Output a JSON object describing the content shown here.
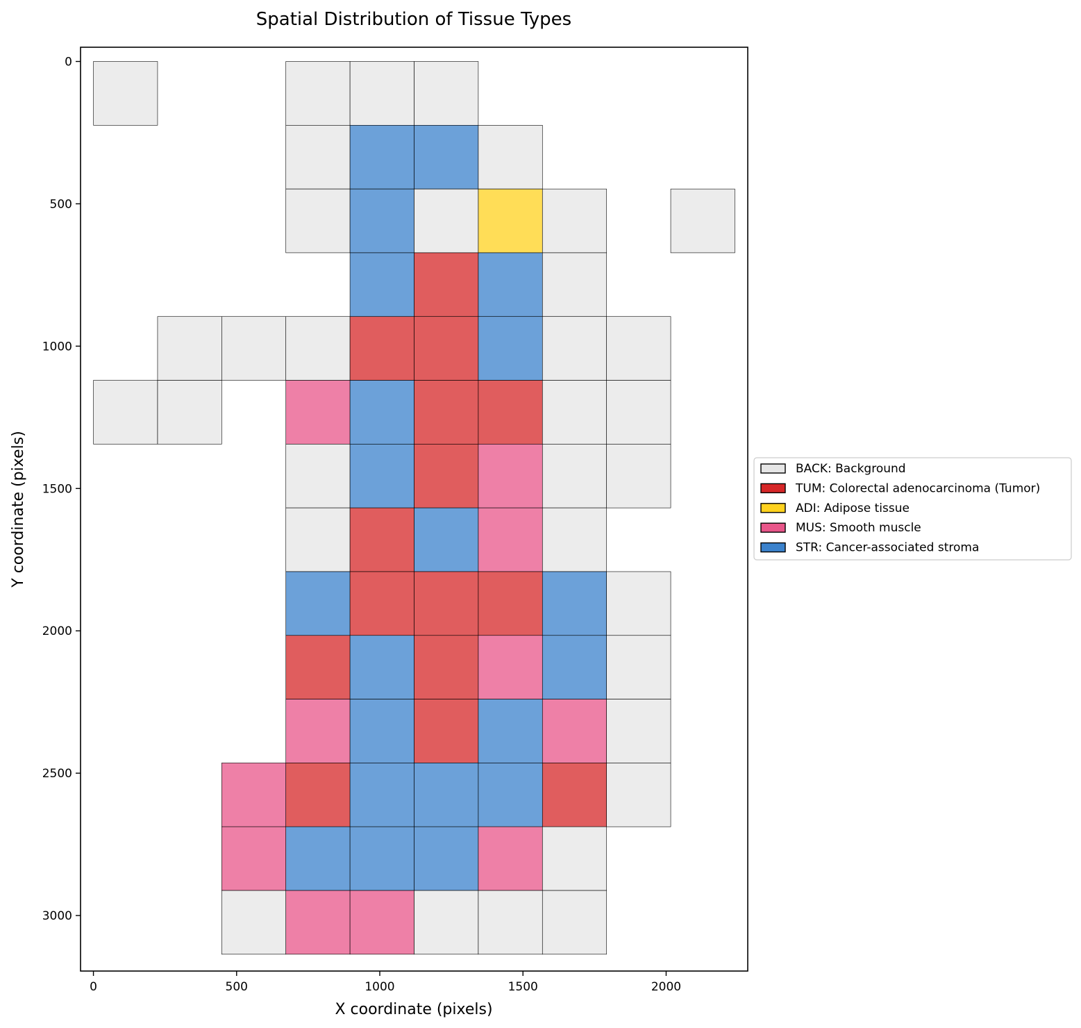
{
  "chart_data": {
    "type": "heatmap",
    "title": "Spatial Distribution of Tissue Types",
    "xlabel": "X coordinate (pixels)",
    "ylabel": "Y coordinate (pixels)",
    "xlim": [
      -45,
      2285
    ],
    "ylim": [
      3195,
      -50
    ],
    "y_inverted": true,
    "tile_size": 224,
    "xticks": [
      0,
      500,
      1000,
      1500,
      2000
    ],
    "yticks": [
      0,
      500,
      1000,
      1500,
      2000,
      2500,
      3000
    ],
    "grid": false,
    "legend_position": "center-right-outside",
    "categories": [
      {
        "code": "BACK",
        "label": "BACK: Background",
        "color": "#e6e6e6"
      },
      {
        "code": "TUM",
        "label": "TUM: Colorectal adenocarcinoma (Tumor)",
        "color": "#d62728"
      },
      {
        "code": "ADI",
        "label": "ADI: Adipose tissue",
        "color": "#ffd21f"
      },
      {
        "code": "MUS",
        "label": "MUS: Smooth muscle",
        "color": "#e8568a"
      },
      {
        "code": "STR",
        "label": "STR: Cancer-associated stroma",
        "color": "#3b82cc"
      }
    ],
    "tile_opacity": 0.75,
    "tiles": [
      {
        "x": 0,
        "y": 0,
        "type": "BACK"
      },
      {
        "x": 672,
        "y": 0,
        "type": "BACK"
      },
      {
        "x": 896,
        "y": 0,
        "type": "BACK"
      },
      {
        "x": 1120,
        "y": 0,
        "type": "BACK"
      },
      {
        "x": 672,
        "y": 224,
        "type": "BACK"
      },
      {
        "x": 896,
        "y": 224,
        "type": "STR"
      },
      {
        "x": 1120,
        "y": 224,
        "type": "STR"
      },
      {
        "x": 1344,
        "y": 224,
        "type": "BACK"
      },
      {
        "x": 672,
        "y": 448,
        "type": "BACK"
      },
      {
        "x": 896,
        "y": 448,
        "type": "STR"
      },
      {
        "x": 1120,
        "y": 448,
        "type": "BACK"
      },
      {
        "x": 1344,
        "y": 448,
        "type": "ADI"
      },
      {
        "x": 1568,
        "y": 448,
        "type": "BACK"
      },
      {
        "x": 2016,
        "y": 448,
        "type": "BACK"
      },
      {
        "x": 896,
        "y": 672,
        "type": "STR"
      },
      {
        "x": 1120,
        "y": 672,
        "type": "TUM"
      },
      {
        "x": 1344,
        "y": 672,
        "type": "STR"
      },
      {
        "x": 1568,
        "y": 672,
        "type": "BACK"
      },
      {
        "x": 224,
        "y": 896,
        "type": "BACK"
      },
      {
        "x": 448,
        "y": 896,
        "type": "BACK"
      },
      {
        "x": 672,
        "y": 896,
        "type": "BACK"
      },
      {
        "x": 896,
        "y": 896,
        "type": "TUM"
      },
      {
        "x": 1120,
        "y": 896,
        "type": "TUM"
      },
      {
        "x": 1344,
        "y": 896,
        "type": "STR"
      },
      {
        "x": 1568,
        "y": 896,
        "type": "BACK"
      },
      {
        "x": 1792,
        "y": 896,
        "type": "BACK"
      },
      {
        "x": 0,
        "y": 1120,
        "type": "BACK"
      },
      {
        "x": 224,
        "y": 1120,
        "type": "BACK"
      },
      {
        "x": 672,
        "y": 1120,
        "type": "MUS"
      },
      {
        "x": 896,
        "y": 1120,
        "type": "STR"
      },
      {
        "x": 1120,
        "y": 1120,
        "type": "TUM"
      },
      {
        "x": 1344,
        "y": 1120,
        "type": "TUM"
      },
      {
        "x": 1568,
        "y": 1120,
        "type": "BACK"
      },
      {
        "x": 1792,
        "y": 1120,
        "type": "BACK"
      },
      {
        "x": 672,
        "y": 1344,
        "type": "BACK"
      },
      {
        "x": 896,
        "y": 1344,
        "type": "STR"
      },
      {
        "x": 1120,
        "y": 1344,
        "type": "TUM"
      },
      {
        "x": 1344,
        "y": 1344,
        "type": "MUS"
      },
      {
        "x": 1568,
        "y": 1344,
        "type": "BACK"
      },
      {
        "x": 1792,
        "y": 1344,
        "type": "BACK"
      },
      {
        "x": 672,
        "y": 1568,
        "type": "BACK"
      },
      {
        "x": 896,
        "y": 1568,
        "type": "TUM"
      },
      {
        "x": 1120,
        "y": 1568,
        "type": "STR"
      },
      {
        "x": 1344,
        "y": 1568,
        "type": "MUS"
      },
      {
        "x": 1568,
        "y": 1568,
        "type": "BACK"
      },
      {
        "x": 672,
        "y": 1792,
        "type": "STR"
      },
      {
        "x": 896,
        "y": 1792,
        "type": "TUM"
      },
      {
        "x": 1120,
        "y": 1792,
        "type": "TUM"
      },
      {
        "x": 1344,
        "y": 1792,
        "type": "TUM"
      },
      {
        "x": 1568,
        "y": 1792,
        "type": "STR"
      },
      {
        "x": 1792,
        "y": 1792,
        "type": "BACK"
      },
      {
        "x": 672,
        "y": 2016,
        "type": "TUM"
      },
      {
        "x": 896,
        "y": 2016,
        "type": "STR"
      },
      {
        "x": 1120,
        "y": 2016,
        "type": "TUM"
      },
      {
        "x": 1344,
        "y": 2016,
        "type": "MUS"
      },
      {
        "x": 1568,
        "y": 2016,
        "type": "STR"
      },
      {
        "x": 1792,
        "y": 2016,
        "type": "BACK"
      },
      {
        "x": 672,
        "y": 2240,
        "type": "MUS"
      },
      {
        "x": 896,
        "y": 2240,
        "type": "STR"
      },
      {
        "x": 1120,
        "y": 2240,
        "type": "TUM"
      },
      {
        "x": 1344,
        "y": 2240,
        "type": "STR"
      },
      {
        "x": 1568,
        "y": 2240,
        "type": "MUS"
      },
      {
        "x": 1792,
        "y": 2240,
        "type": "BACK"
      },
      {
        "x": 448,
        "y": 2464,
        "type": "MUS"
      },
      {
        "x": 672,
        "y": 2464,
        "type": "TUM"
      },
      {
        "x": 896,
        "y": 2464,
        "type": "STR"
      },
      {
        "x": 1120,
        "y": 2464,
        "type": "STR"
      },
      {
        "x": 1344,
        "y": 2464,
        "type": "STR"
      },
      {
        "x": 1568,
        "y": 2464,
        "type": "TUM"
      },
      {
        "x": 1792,
        "y": 2464,
        "type": "BACK"
      },
      {
        "x": 448,
        "y": 2688,
        "type": "MUS"
      },
      {
        "x": 672,
        "y": 2688,
        "type": "STR"
      },
      {
        "x": 896,
        "y": 2688,
        "type": "STR"
      },
      {
        "x": 1120,
        "y": 2688,
        "type": "STR"
      },
      {
        "x": 1344,
        "y": 2688,
        "type": "MUS"
      },
      {
        "x": 1568,
        "y": 2688,
        "type": "BACK"
      },
      {
        "x": 448,
        "y": 2912,
        "type": "BACK"
      },
      {
        "x": 672,
        "y": 2912,
        "type": "MUS"
      },
      {
        "x": 896,
        "y": 2912,
        "type": "MUS"
      },
      {
        "x": 1120,
        "y": 2912,
        "type": "BACK"
      },
      {
        "x": 1344,
        "y": 2912,
        "type": "BACK"
      },
      {
        "x": 1568,
        "y": 2912,
        "type": "BACK"
      }
    ]
  }
}
